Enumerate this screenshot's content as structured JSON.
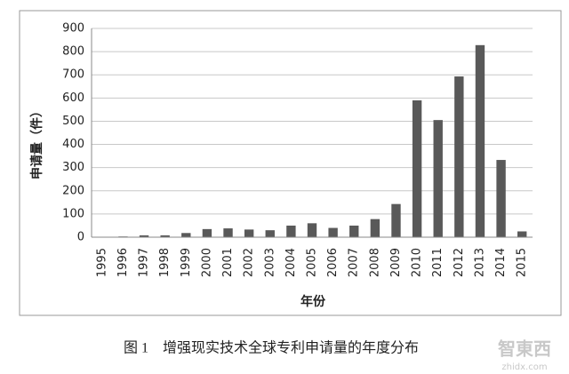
{
  "chart_data": {
    "type": "bar",
    "y_label": "申请量（件）",
    "x_label": "年份",
    "categories": [
      "1995",
      "1996",
      "1997",
      "1998",
      "1999",
      "2000",
      "2001",
      "2002",
      "2003",
      "2004",
      "2005",
      "2006",
      "2007",
      "2008",
      "2009",
      "2010",
      "2011",
      "2012",
      "2013",
      "2014",
      "2015"
    ],
    "values": [
      0,
      3,
      8,
      8,
      18,
      35,
      38,
      33,
      30,
      50,
      60,
      40,
      50,
      78,
      143,
      590,
      505,
      693,
      828,
      333,
      25
    ],
    "color": "#595959",
    "ylim": [
      0,
      900
    ],
    "yticks": [
      0,
      100,
      200,
      300,
      400,
      500,
      600,
      700,
      800,
      900
    ],
    "grid": true
  },
  "caption": "图 1　增强现实技术全球专利申请量的年度分布",
  "watermark": "智東西",
  "watermark_url": "zhidx.com"
}
